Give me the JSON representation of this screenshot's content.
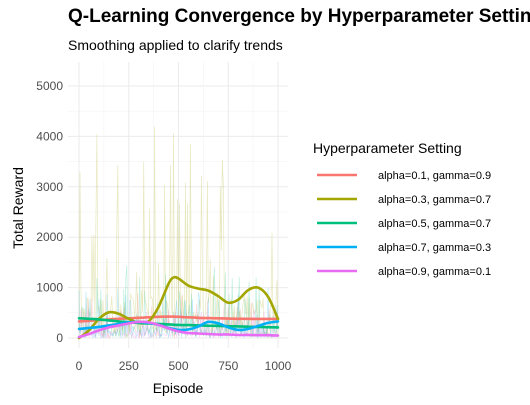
{
  "chart_data": {
    "type": "line",
    "title": "Q-Learning Convergence by Hyperparameter Setting",
    "subtitle": "Smoothing applied to clarify trends",
    "xlabel": "Episode",
    "ylabel": "Total Reward",
    "xlim": [
      0,
      1000
    ],
    "ylim": [
      -50,
      5300
    ],
    "xticks": [
      0,
      250,
      500,
      750,
      1000
    ],
    "yticks": [
      0,
      1000,
      2000,
      3000,
      4000,
      5000
    ],
    "grid": true,
    "legend_title": "Hyperparameter Setting",
    "legend_position": "right",
    "series": [
      {
        "name": "alpha=0.1, gamma=0.9",
        "color": "#F8766D",
        "x": [
          0,
          50,
          100,
          150,
          200,
          250,
          300,
          350,
          400,
          450,
          500,
          550,
          600,
          650,
          700,
          750,
          800,
          850,
          900,
          950,
          1000
        ],
        "smooth": [
          330,
          340,
          355,
          370,
          380,
          390,
          400,
          410,
          420,
          425,
          420,
          410,
          400,
          395,
          390,
          385,
          380,
          380,
          378,
          378,
          378
        ],
        "raw_level": 400,
        "raw_spread": 900
      },
      {
        "name": "alpha=0.3, gamma=0.7",
        "color": "#A3A500",
        "x": [
          0,
          50,
          100,
          150,
          200,
          250,
          300,
          350,
          400,
          450,
          475,
          500,
          550,
          600,
          650,
          700,
          750,
          800,
          850,
          900,
          950,
          1000
        ],
        "smooth": [
          0,
          150,
          380,
          510,
          480,
          380,
          300,
          330,
          620,
          1080,
          1200,
          1180,
          1040,
          980,
          940,
          830,
          700,
          760,
          950,
          1000,
          820,
          380
        ],
        "raw_level": 900,
        "raw_spread": 4200
      },
      {
        "name": "alpha=0.5, gamma=0.7",
        "color": "#00BF7D",
        "x": [
          0,
          50,
          100,
          150,
          200,
          250,
          300,
          350,
          400,
          450,
          500,
          550,
          600,
          650,
          700,
          750,
          800,
          850,
          900,
          950,
          1000
        ],
        "smooth": [
          390,
          380,
          370,
          350,
          330,
          310,
          300,
          290,
          280,
          270,
          260,
          255,
          250,
          245,
          240,
          235,
          230,
          225,
          220,
          215,
          210
        ],
        "raw_level": 300,
        "raw_spread": 1500
      },
      {
        "name": "alpha=0.7, gamma=0.3",
        "color": "#00B0F6",
        "x": [
          0,
          50,
          100,
          150,
          200,
          250,
          300,
          350,
          400,
          450,
          500,
          550,
          600,
          650,
          700,
          750,
          800,
          850,
          900,
          950,
          1000
        ],
        "smooth": [
          180,
          200,
          220,
          250,
          280,
          310,
          320,
          300,
          260,
          200,
          160,
          170,
          230,
          320,
          290,
          210,
          160,
          180,
          240,
          300,
          330
        ],
        "raw_level": 250,
        "raw_spread": 1000
      },
      {
        "name": "alpha=0.9, gamma=0.1",
        "color": "#E76BF3",
        "x": [
          0,
          50,
          100,
          150,
          200,
          250,
          300,
          350,
          400,
          450,
          500,
          550,
          600,
          650,
          700,
          750,
          800,
          850,
          900,
          950,
          1000
        ],
        "smooth": [
          20,
          80,
          150,
          210,
          250,
          290,
          320,
          310,
          260,
          190,
          130,
          100,
          90,
          80,
          70,
          70,
          60,
          60,
          55,
          55,
          50
        ],
        "raw_level": 150,
        "raw_spread": 600
      }
    ]
  }
}
